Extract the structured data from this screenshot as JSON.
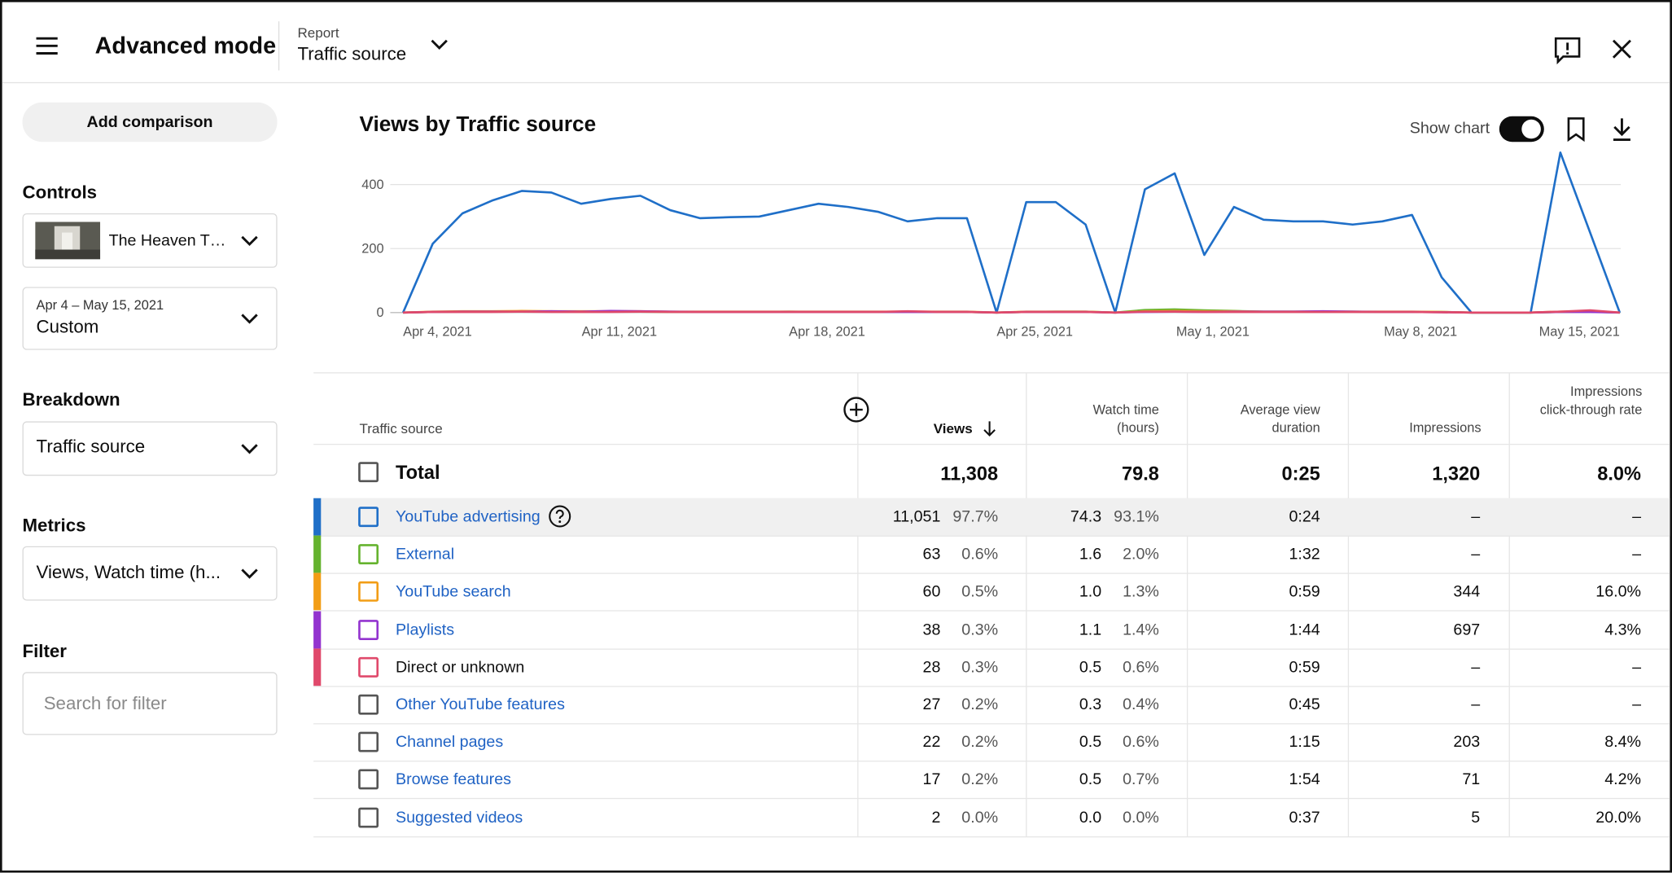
{
  "header": {
    "title": "Advanced mode",
    "report_label": "Report",
    "report": "Traffic source"
  },
  "sidebar": {
    "add_comparison": "Add comparison",
    "controls": "Controls",
    "video": "The Heaven T…",
    "date_range": "Apr 4 – May 15, 2021",
    "date_preset": "Custom",
    "breakdown_label": "Breakdown",
    "breakdown": "Traffic source",
    "metrics_label": "Metrics",
    "metrics": "Views, Watch time (h...",
    "filter_label": "Filter",
    "filter_placeholder": "Search for filter"
  },
  "chart": {
    "type": "line",
    "title": "Views by Traffic source",
    "show_chart": "Show chart",
    "categories": [
      "Apr 4, 2021",
      null,
      null,
      null,
      null,
      null,
      null,
      "Apr 11, 2021",
      null,
      null,
      null,
      null,
      null,
      null,
      "Apr 18, 2021",
      null,
      null,
      null,
      null,
      null,
      null,
      "Apr 25, 2021",
      null,
      null,
      null,
      null,
      null,
      "May 1, 2021",
      null,
      null,
      null,
      null,
      null,
      null,
      "May 8, 2021",
      null,
      null,
      null,
      null,
      null,
      null,
      "May 15, 2021"
    ],
    "series": [
      {
        "color": "#1f6fc8",
        "values": [
          0,
          215,
          310,
          350,
          380,
          375,
          340,
          355,
          365,
          320,
          295,
          298,
          300,
          320,
          340,
          330,
          315,
          285,
          295,
          295,
          0,
          345,
          345,
          275,
          0,
          385,
          435,
          180,
          330,
          290,
          285,
          285,
          275,
          285,
          305,
          110,
          0,
          0,
          0,
          500,
          250,
          0
        ]
      },
      {
        "color": "#65b32e",
        "values": [
          0,
          2,
          3,
          3,
          3,
          3,
          3,
          3,
          3,
          2,
          2,
          2,
          2,
          3,
          2,
          2,
          2,
          3,
          2,
          2,
          0,
          2,
          3,
          3,
          0,
          8,
          10,
          7,
          5,
          3,
          3,
          3,
          3,
          2,
          2,
          2,
          0,
          0,
          0,
          2,
          3,
          0
        ]
      },
      {
        "color": "#f29d16",
        "values": [
          0,
          3,
          4,
          4,
          5,
          4,
          4,
          4,
          4,
          3,
          3,
          3,
          3,
          3,
          3,
          3,
          3,
          3,
          3,
          3,
          0,
          3,
          3,
          3,
          0,
          4,
          5,
          4,
          4,
          3,
          3,
          3,
          3,
          3,
          3,
          2,
          0,
          0,
          0,
          3,
          4,
          0
        ]
      },
      {
        "color": "#9334cf",
        "values": [
          0,
          2,
          3,
          3,
          3,
          4,
          3,
          5,
          4,
          3,
          2,
          2,
          2,
          2,
          2,
          2,
          2,
          2,
          2,
          2,
          0,
          2,
          2,
          2,
          0,
          2,
          3,
          2,
          3,
          3,
          3,
          4,
          3,
          2,
          2,
          1,
          0,
          0,
          0,
          2,
          2,
          0
        ]
      },
      {
        "color": "#e0496b",
        "values": [
          0,
          2,
          2,
          2,
          3,
          2,
          2,
          2,
          3,
          2,
          2,
          2,
          2,
          2,
          2,
          2,
          2,
          4,
          2,
          2,
          0,
          2,
          2,
          2,
          0,
          3,
          3,
          2,
          2,
          2,
          2,
          2,
          2,
          2,
          2,
          1,
          0,
          0,
          0,
          3,
          7,
          0
        ]
      }
    ],
    "ylim": [
      0,
      500
    ],
    "yticks": [
      0,
      200,
      400
    ],
    "grid": true
  },
  "table": {
    "headers": [
      "Traffic source",
      "Views",
      "Watch time (hours)",
      "Average view duration",
      "Impressions",
      "Impressions click-through rate"
    ],
    "total": {
      "label": "Total",
      "views": "11,308",
      "watch_time": "79.8",
      "avg_duration": "0:25",
      "impressions": "1,320",
      "ctr": "8.0%"
    },
    "rows": [
      {
        "source": "YouTube advertising",
        "color": "#1f6fc8",
        "link": true,
        "views": "11,051",
        "views_pct": "97.7%",
        "watch_time": "74.3",
        "watch_pct": "93.1%",
        "avg_duration": "0:24",
        "impressions": "–",
        "ctr": "–"
      },
      {
        "source": "External",
        "color": "#65b32e",
        "link": true,
        "views": "63",
        "views_pct": "0.6%",
        "watch_time": "1.6",
        "watch_pct": "2.0%",
        "avg_duration": "1:32",
        "impressions": "–",
        "ctr": "–"
      },
      {
        "source": "YouTube search",
        "color": "#f29d16",
        "link": true,
        "views": "60",
        "views_pct": "0.5%",
        "watch_time": "1.0",
        "watch_pct": "1.3%",
        "avg_duration": "0:59",
        "impressions": "344",
        "ctr": "16.0%"
      },
      {
        "source": "Playlists",
        "color": "#9334cf",
        "link": true,
        "views": "38",
        "views_pct": "0.3%",
        "watch_time": "1.1",
        "watch_pct": "1.4%",
        "avg_duration": "1:44",
        "impressions": "697",
        "ctr": "4.3%"
      },
      {
        "source": "Direct or unknown",
        "color": "#e0496b",
        "link": false,
        "views": "28",
        "views_pct": "0.3%",
        "watch_time": "0.5",
        "watch_pct": "0.6%",
        "avg_duration": "0:59",
        "impressions": "–",
        "ctr": "–"
      },
      {
        "source": "Other YouTube features",
        "link": true,
        "views": "27",
        "views_pct": "0.2%",
        "watch_time": "0.3",
        "watch_pct": "0.4%",
        "avg_duration": "0:45",
        "impressions": "–",
        "ctr": "–"
      },
      {
        "source": "Channel pages",
        "link": true,
        "views": "22",
        "views_pct": "0.2%",
        "watch_time": "0.5",
        "watch_pct": "0.6%",
        "avg_duration": "1:15",
        "impressions": "203",
        "ctr": "8.4%"
      },
      {
        "source": "Browse features",
        "link": true,
        "views": "17",
        "views_pct": "0.2%",
        "watch_time": "0.5",
        "watch_pct": "0.7%",
        "avg_duration": "1:54",
        "impressions": "71",
        "ctr": "4.2%"
      },
      {
        "source": "Suggested videos",
        "link": true,
        "views": "2",
        "views_pct": "0.0%",
        "watch_time": "0.0",
        "watch_pct": "0.0%",
        "avg_duration": "0:37",
        "impressions": "5",
        "ctr": "20.0%"
      }
    ]
  }
}
